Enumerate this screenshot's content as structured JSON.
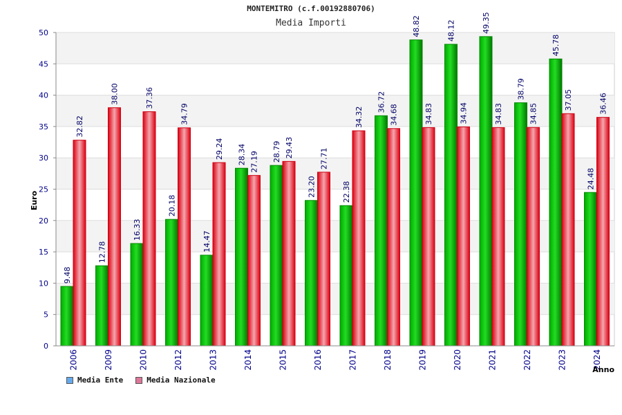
{
  "chart_data": {
    "type": "bar",
    "title": "MONTEMITRO (c.f.00192880706)",
    "subtitle": "Media Importi",
    "xlabel": "Anno",
    "ylabel": "Euro",
    "ylim": [
      0,
      50
    ],
    "yticks": [
      0,
      5,
      10,
      15,
      20,
      25,
      30,
      35,
      40,
      45,
      50
    ],
    "grid": true,
    "legend_position": "bottom-left",
    "categories": [
      "2006",
      "2009",
      "2010",
      "2012",
      "2013",
      "2014",
      "2015",
      "2016",
      "2017",
      "2018",
      "2019",
      "2020",
      "2021",
      "2022",
      "2023",
      "2024"
    ],
    "series": [
      {
        "name": "Media Ente",
        "color": "#00cc00",
        "legend_color": "#66aaee",
        "values": [
          9.48,
          12.78,
          16.33,
          20.18,
          14.47,
          28.34,
          28.79,
          23.2,
          22.38,
          36.72,
          48.82,
          48.12,
          49.35,
          38.79,
          45.78,
          24.48
        ],
        "labels": [
          "9.48",
          "12.78",
          "16.33",
          "20.18",
          "14.47",
          "28.34",
          "28.79",
          "23.20",
          "22.38",
          "36.72",
          "48.82",
          "48.12",
          "49.35",
          "38.79",
          "45.78",
          "24.48"
        ]
      },
      {
        "name": "Media Nazionale",
        "color": "#ee1122",
        "legend_color": "#dd7799",
        "values": [
          32.82,
          38.0,
          37.36,
          34.79,
          29.24,
          27.19,
          29.43,
          27.71,
          34.32,
          34.68,
          34.83,
          34.94,
          34.83,
          34.85,
          37.05,
          36.46
        ],
        "labels": [
          "32.82",
          "38.00",
          "37.36",
          "34.79",
          "29.24",
          "27.19",
          "29.43",
          "27.71",
          "34.32",
          "34.68",
          "34.83",
          "34.94",
          "34.83",
          "34.85",
          "37.05",
          "36.46"
        ]
      }
    ]
  }
}
